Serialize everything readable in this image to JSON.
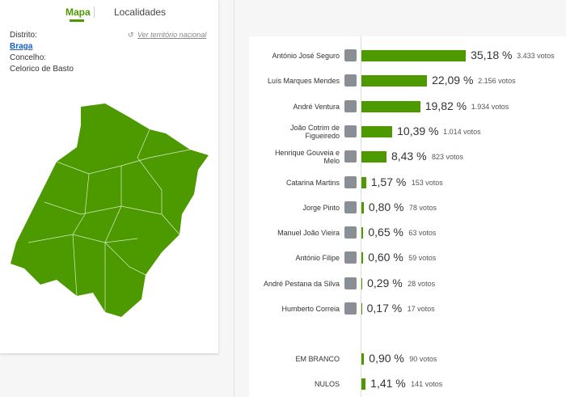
{
  "tabs": [
    "Mapa",
    "Localidades"
  ],
  "sidebar": {
    "district_label": "Distrito:",
    "district": "Braga",
    "county_label": "Concelho:",
    "county": "Celorico de Basto",
    "national_link": "Ver território nacional"
  },
  "chart_data": {
    "type": "bar",
    "color": "#4c9a00",
    "categories": [
      "António José Seguro",
      "Luís Marques Mendes",
      "André Ventura",
      "João Cotrim de\nFigueiredo",
      "Henrique Gouveia e\nMelo",
      "Catarina Martins",
      "Jorge Pinto",
      "Manuel João Vieira",
      "António Filipe",
      "André Pestana da Silva",
      "Humberto Correia"
    ],
    "values": [
      35.18,
      22.09,
      19.82,
      10.39,
      8.43,
      1.57,
      0.8,
      0.65,
      0.6,
      0.29,
      0.17
    ],
    "value_labels": [
      "35,18 %",
      "22,09 %",
      "19,82 %",
      "10,39 %",
      "8,43 %",
      "1,57 %",
      "0,80 %",
      "0,65 %",
      "0,60 %",
      "0,29 %",
      "0,17 %"
    ],
    "vote_labels": [
      "3.433 votos",
      "2.156 votos",
      "1.934 votos",
      "1.014 votos",
      "823 votos",
      "153 votos",
      "78 votos",
      "63 votos",
      "59 votos",
      "28 votos",
      "17 votos"
    ],
    "other_categories": [
      "EM BRANCO",
      "NULOS"
    ],
    "other_values": [
      0.9,
      1.41
    ],
    "other_value_labels": [
      "0,90 %",
      "1,41 %"
    ],
    "other_vote_labels": [
      "90 votos",
      "141 votos"
    ]
  }
}
